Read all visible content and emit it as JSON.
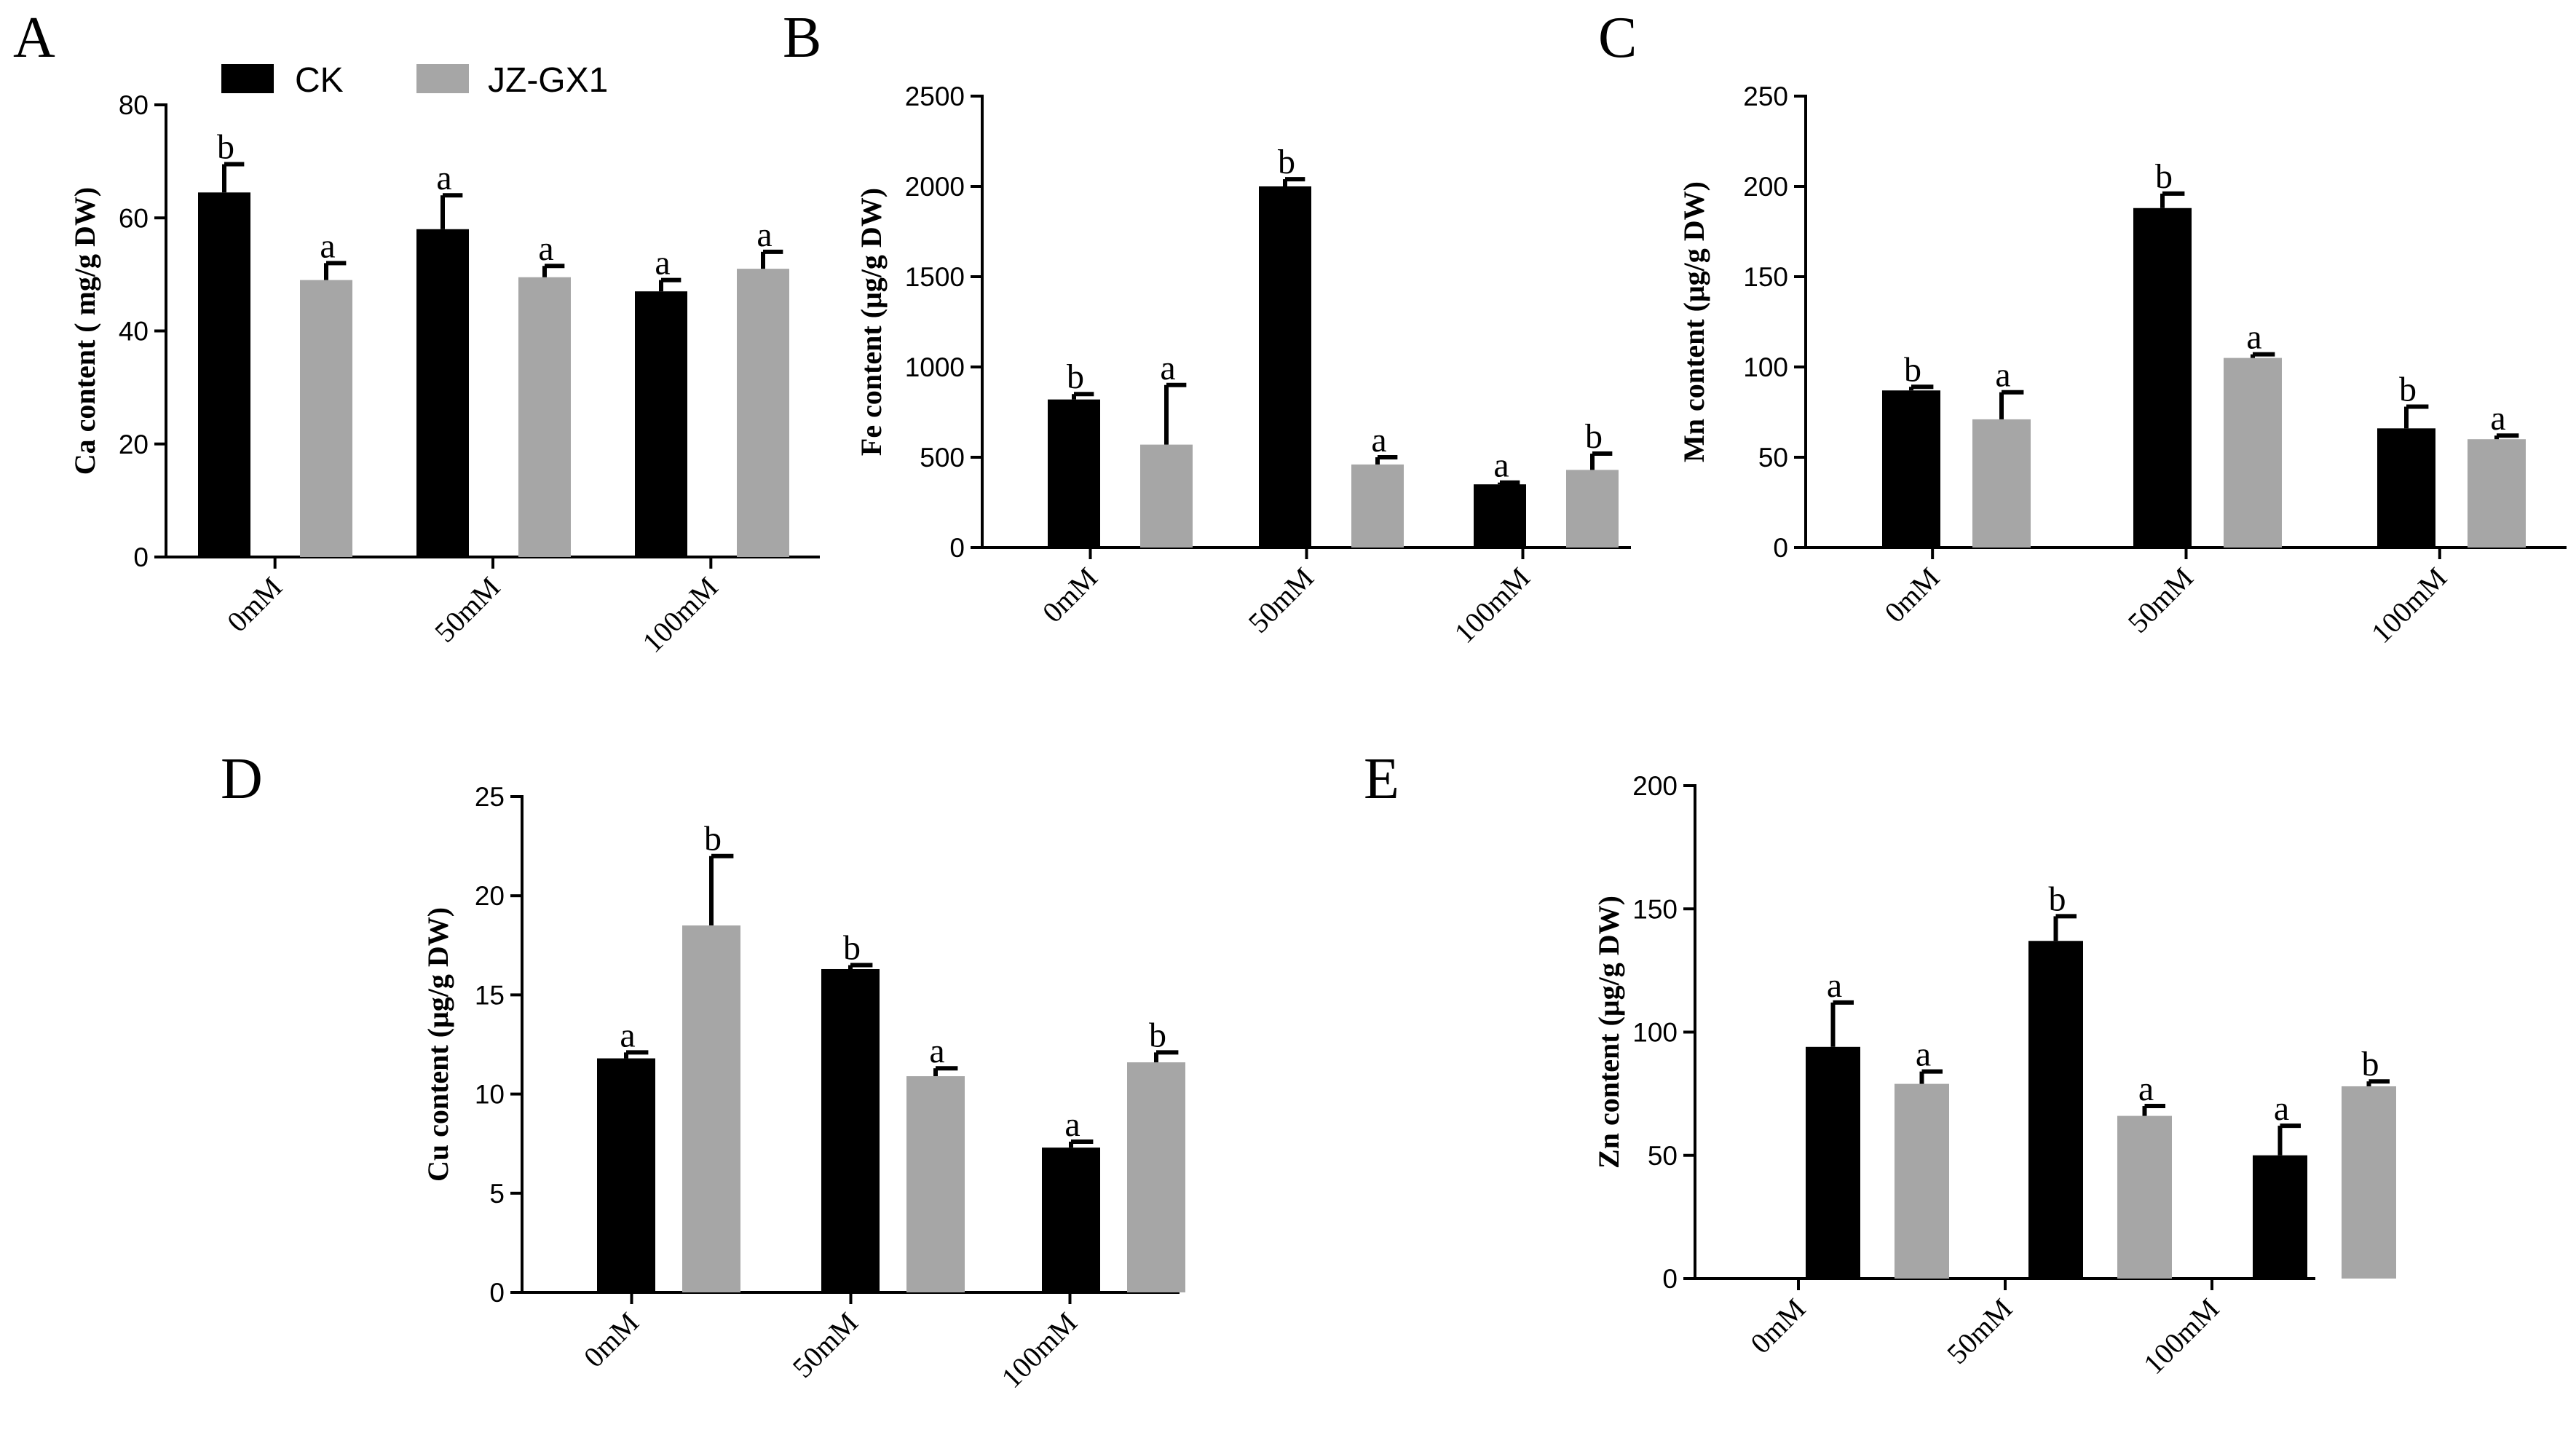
{
  "figure": {
    "legend": [
      {
        "label": "CK",
        "color": "#000000"
      },
      {
        "label": "JZ-GX1",
        "color": "#a6a6a6"
      }
    ]
  },
  "chart_data": [
    {
      "id": "A",
      "panel_label": "A",
      "type": "bar",
      "ylabel": "Ca content ( mg/g  DW)",
      "categories": [
        "0mM",
        "50mM",
        "100mM"
      ],
      "ylim": [
        0,
        80
      ],
      "yticks": [
        0,
        20,
        40,
        60,
        80
      ],
      "series": [
        {
          "name": "CK",
          "color": "#000000",
          "values": [
            64.5,
            58,
            47
          ],
          "errors": [
            5,
            6,
            2
          ],
          "letters": [
            "b",
            "a",
            "a"
          ]
        },
        {
          "name": "JZ-GX1",
          "color": "#a6a6a6",
          "values": [
            49,
            49.5,
            51
          ],
          "errors": [
            3,
            2,
            3
          ],
          "letters": [
            "a",
            "a",
            "a"
          ]
        }
      ]
    },
    {
      "id": "B",
      "panel_label": "B",
      "type": "bar",
      "ylabel": "Fe content (μg/g  DW)",
      "categories": [
        "0mM",
        "50mM",
        "100mM"
      ],
      "ylim": [
        0,
        2500
      ],
      "yticks": [
        0,
        500,
        1000,
        1500,
        2000,
        2500
      ],
      "series": [
        {
          "name": "CK",
          "color": "#000000",
          "values": [
            820,
            2000,
            350
          ],
          "errors": [
            30,
            40,
            10
          ],
          "letters": [
            "b",
            "b",
            "a"
          ]
        },
        {
          "name": "JZ-GX1",
          "color": "#a6a6a6",
          "values": [
            570,
            460,
            430
          ],
          "errors": [
            330,
            40,
            90
          ],
          "letters": [
            "a",
            "a",
            "b"
          ]
        }
      ]
    },
    {
      "id": "C",
      "panel_label": "C",
      "type": "bar",
      "ylabel": "Mn content (μg/g  DW)",
      "categories": [
        "0mM",
        "50mM",
        "100mM"
      ],
      "ylim": [
        0,
        250
      ],
      "yticks": [
        0,
        50,
        100,
        150,
        200,
        250
      ],
      "series": [
        {
          "name": "CK",
          "color": "#000000",
          "values": [
            87,
            188,
            66
          ],
          "errors": [
            2,
            8,
            12
          ],
          "letters": [
            "b",
            "b",
            "b"
          ]
        },
        {
          "name": "JZ-GX1",
          "color": "#a6a6a6",
          "values": [
            71,
            105,
            60
          ],
          "errors": [
            15,
            2,
            2
          ],
          "letters": [
            "a",
            "a",
            "a"
          ]
        }
      ]
    },
    {
      "id": "D",
      "panel_label": "D",
      "type": "bar",
      "ylabel": "Cu content (μg/g  DW)",
      "categories": [
        "0mM",
        "50mM",
        "100mM"
      ],
      "ylim": [
        0,
        25
      ],
      "yticks": [
        0,
        5,
        10,
        15,
        20,
        25
      ],
      "series": [
        {
          "name": "CK",
          "color": "#000000",
          "values": [
            11.8,
            16.3,
            7.3
          ],
          "errors": [
            0.3,
            0.2,
            0.3
          ],
          "letters": [
            "a",
            "b",
            "a"
          ]
        },
        {
          "name": "JZ-GX1",
          "color": "#a6a6a6",
          "values": [
            18.5,
            10.9,
            11.6
          ],
          "errors": [
            3.5,
            0.4,
            0.5
          ],
          "letters": [
            "b",
            "a",
            "b"
          ]
        }
      ]
    },
    {
      "id": "E",
      "panel_label": "E",
      "type": "bar",
      "ylabel": "Zn content (μg/g  DW)",
      "categories": [
        "0mM",
        "50mM",
        "100mM"
      ],
      "ylim": [
        0,
        200
      ],
      "yticks": [
        0,
        50,
        100,
        150,
        200
      ],
      "series": [
        {
          "name": "CK",
          "color": "#000000",
          "values": [
            94,
            137,
            50
          ],
          "errors": [
            18,
            10,
            12
          ],
          "letters": [
            "a",
            "b",
            "a"
          ]
        },
        {
          "name": "JZ-GX1",
          "color": "#a6a6a6",
          "values": [
            79,
            66,
            78
          ],
          "errors": [
            5,
            4,
            2
          ],
          "letters": [
            "a",
            "a",
            "b"
          ]
        }
      ]
    }
  ]
}
